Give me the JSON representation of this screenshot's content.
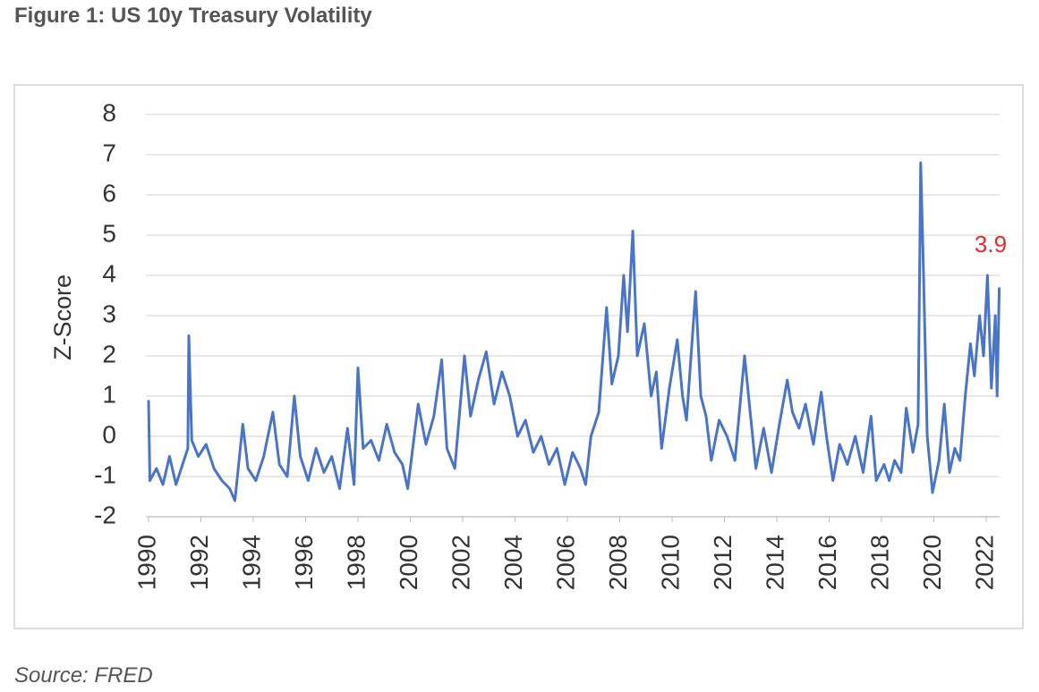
{
  "chart_data": {
    "type": "line",
    "title": "Figure 1: US 10y Treasury Volatility",
    "ylabel": "Z-Score",
    "source": "Source: FRED",
    "annotation": "3.9",
    "annotation_color": "#e8292b",
    "grid": true,
    "xlim": [
      1990,
      2022.6
    ],
    "xticks": [
      1990,
      1992,
      1994,
      1996,
      1998,
      2000,
      2002,
      2004,
      2006,
      2008,
      2010,
      2012,
      2014,
      2016,
      2018,
      2020,
      2022
    ],
    "ylim": [
      -2,
      8
    ],
    "yticks": [
      -2,
      -1,
      0,
      1,
      2,
      3,
      4,
      5,
      6,
      7,
      8
    ],
    "series": [
      {
        "color": "#4a74c8",
        "x": [
          1990.0,
          1990.05,
          1990.3,
          1990.55,
          1990.8,
          1991.05,
          1991.3,
          1991.5,
          1991.54,
          1991.65,
          1991.9,
          1992.2,
          1992.5,
          1992.8,
          1993.1,
          1993.3,
          1993.6,
          1993.8,
          1994.1,
          1994.4,
          1994.75,
          1995.0,
          1995.3,
          1995.57,
          1995.8,
          1996.1,
          1996.4,
          1996.7,
          1997.0,
          1997.3,
          1997.6,
          1997.85,
          1998.0,
          1998.2,
          1998.5,
          1998.8,
          1999.1,
          1999.4,
          1999.7,
          1999.9,
          2000.3,
          2000.6,
          2000.9,
          2001.2,
          2001.4,
          2001.7,
          2002.07,
          2002.3,
          2002.6,
          2002.9,
          2003.2,
          2003.5,
          2003.8,
          2004.1,
          2004.4,
          2004.7,
          2005.0,
          2005.3,
          2005.6,
          2005.9,
          2006.2,
          2006.5,
          2006.7,
          2006.9,
          2007.2,
          2007.5,
          2007.7,
          2007.95,
          2008.15,
          2008.3,
          2008.5,
          2008.67,
          2008.94,
          2009.2,
          2009.4,
          2009.6,
          2009.9,
          2010.2,
          2010.4,
          2010.55,
          2010.9,
          2011.1,
          2011.3,
          2011.5,
          2011.8,
          2012.1,
          2012.4,
          2012.77,
          2013.0,
          2013.2,
          2013.5,
          2013.8,
          2014.1,
          2014.4,
          2014.6,
          2014.85,
          2015.1,
          2015.4,
          2015.7,
          2015.9,
          2016.15,
          2016.4,
          2016.7,
          2017.0,
          2017.3,
          2017.6,
          2017.8,
          2018.1,
          2018.3,
          2018.5,
          2018.75,
          2018.95,
          2019.2,
          2019.4,
          2019.5,
          2019.6,
          2019.75,
          2019.95,
          2020.2,
          2020.4,
          2020.6,
          2020.8,
          2021.0,
          2021.2,
          2021.4,
          2021.55,
          2021.75,
          2021.9,
          2022.05,
          2022.2,
          2022.35,
          2022.42,
          2022.5
        ],
        "values": [
          0.9,
          -1.1,
          -0.8,
          -1.2,
          -0.5,
          -1.2,
          -0.7,
          -0.3,
          2.5,
          -0.1,
          -0.5,
          -0.2,
          -0.8,
          -1.1,
          -1.3,
          -1.6,
          0.3,
          -0.8,
          -1.1,
          -0.5,
          0.6,
          -0.7,
          -1.0,
          1.0,
          -0.5,
          -1.1,
          -0.3,
          -0.9,
          -0.5,
          -1.3,
          0.2,
          -1.2,
          1.7,
          -0.3,
          -0.1,
          -0.6,
          0.3,
          -0.4,
          -0.7,
          -1.3,
          0.8,
          -0.2,
          0.5,
          1.9,
          -0.3,
          -0.8,
          2.0,
          0.5,
          1.4,
          2.1,
          0.8,
          1.6,
          1.0,
          0.0,
          0.4,
          -0.4,
          0.0,
          -0.7,
          -0.3,
          -1.2,
          -0.4,
          -0.8,
          -1.2,
          0.0,
          0.6,
          3.2,
          1.3,
          2.0,
          4.0,
          2.6,
          5.1,
          2.0,
          2.8,
          1.0,
          1.6,
          -0.3,
          1.2,
          2.4,
          1.0,
          0.4,
          3.6,
          1.0,
          0.5,
          -0.6,
          0.4,
          0.0,
          -0.6,
          2.0,
          0.5,
          -0.8,
          0.2,
          -0.9,
          0.3,
          1.4,
          0.6,
          0.2,
          0.8,
          -0.2,
          1.1,
          0.0,
          -1.1,
          -0.2,
          -0.7,
          0.0,
          -0.9,
          0.5,
          -1.1,
          -0.7,
          -1.1,
          -0.6,
          -0.9,
          0.7,
          -0.4,
          0.3,
          6.8,
          4.2,
          0.0,
          -1.4,
          -0.6,
          0.8,
          -0.9,
          -0.3,
          -0.6,
          1.0,
          2.3,
          1.5,
          3.0,
          2.0,
          4.0,
          1.2,
          3.0,
          1.0,
          3.7
        ]
      }
    ]
  }
}
